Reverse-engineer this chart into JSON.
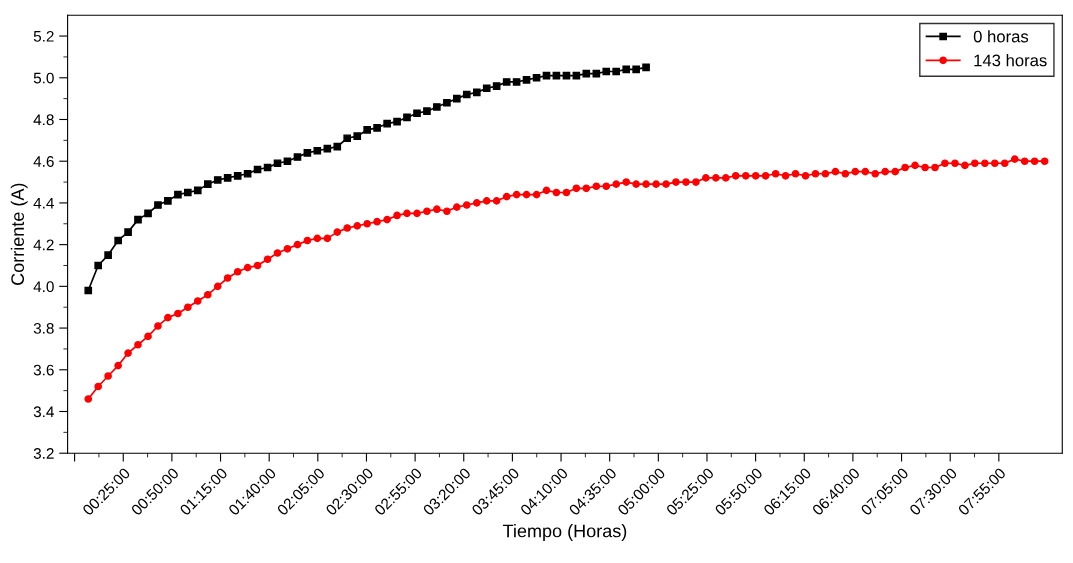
{
  "chart_data": {
    "type": "line",
    "xlabel": "Tiempo (Horas)",
    "ylabel": "Corriente (A)",
    "xlim": [
      -0.06,
      8.46
    ],
    "ylim": [
      3.2,
      5.3
    ],
    "xticks": [
      {
        "value": 0,
        "label": null
      },
      {
        "value": 0.4167,
        "label": "00:25:00"
      },
      {
        "value": 0.8333,
        "label": "00:50:00"
      },
      {
        "value": 1.25,
        "label": "01:15:00"
      },
      {
        "value": 1.6667,
        "label": "01:40:00"
      },
      {
        "value": 2.0833,
        "label": "02:05:00"
      },
      {
        "value": 2.5,
        "label": "02:30:00"
      },
      {
        "value": 2.9167,
        "label": "02:55:00"
      },
      {
        "value": 3.3333,
        "label": "03:20:00"
      },
      {
        "value": 3.75,
        "label": "03:45:00"
      },
      {
        "value": 4.1667,
        "label": "04:10:00"
      },
      {
        "value": 4.5833,
        "label": "04:35:00"
      },
      {
        "value": 5.0,
        "label": "05:00:00"
      },
      {
        "value": 5.4167,
        "label": "05:25:00"
      },
      {
        "value": 5.8333,
        "label": "05:50:00"
      },
      {
        "value": 6.25,
        "label": "06:15:00"
      },
      {
        "value": 6.6667,
        "label": "06:40:00"
      },
      {
        "value": 7.0833,
        "label": "07:05:00"
      },
      {
        "value": 7.5,
        "label": "07:30:00"
      },
      {
        "value": 7.9167,
        "label": "07:55:00"
      }
    ],
    "yticks": [
      3.2,
      3.4,
      3.6,
      3.8,
      {
        "value": 4,
        "label": "4.0"
      },
      4.2,
      4.4,
      4.6,
      4.8,
      {
        "value": 5,
        "label": "5.0"
      },
      5.2
    ],
    "grid": false,
    "legend": "top right",
    "series": [
      {
        "name": "0 horas",
        "color": "#000000",
        "marker": "square",
        "x": [
          0.117,
          0.202,
          0.287,
          0.373,
          0.458,
          0.543,
          0.629,
          0.714,
          0.799,
          0.885,
          0.97,
          1.055,
          1.141,
          1.226,
          1.311,
          1.397,
          1.482,
          1.567,
          1.653,
          1.738,
          1.823,
          1.909,
          1.994,
          2.079,
          2.165,
          2.25,
          2.335,
          2.421,
          2.506,
          2.591,
          2.677,
          2.762,
          2.847,
          2.933,
          3.018,
          3.103,
          3.189,
          3.274,
          3.359,
          3.445,
          3.53,
          3.615,
          3.701,
          3.786,
          3.871,
          3.957,
          4.042,
          4.127,
          4.213,
          4.298,
          4.383,
          4.469,
          4.554,
          4.639,
          4.725,
          4.81,
          4.895
        ],
        "values": [
          3.98,
          4.1,
          4.15,
          4.22,
          4.26,
          4.32,
          4.35,
          4.39,
          4.41,
          4.44,
          4.45,
          4.46,
          4.49,
          4.51,
          4.52,
          4.53,
          4.54,
          4.56,
          4.57,
          4.59,
          4.6,
          4.62,
          4.64,
          4.65,
          4.66,
          4.67,
          4.71,
          4.72,
          4.75,
          4.76,
          4.78,
          4.79,
          4.81,
          4.83,
          4.84,
          4.86,
          4.88,
          4.9,
          4.92,
          4.93,
          4.95,
          4.96,
          4.98,
          4.98,
          4.99,
          5.0,
          5.01,
          5.01,
          5.01,
          5.01,
          5.02,
          5.02,
          5.03,
          5.03,
          5.04,
          5.04,
          5.05
        ]
      },
      {
        "name": "143 horas",
        "color": "#ff0000",
        "marker": "circle",
        "x": [
          0.117,
          0.202,
          0.287,
          0.373,
          0.458,
          0.543,
          0.629,
          0.714,
          0.799,
          0.885,
          0.97,
          1.055,
          1.141,
          1.226,
          1.311,
          1.397,
          1.482,
          1.567,
          1.653,
          1.738,
          1.823,
          1.909,
          1.994,
          2.079,
          2.165,
          2.25,
          2.335,
          2.421,
          2.506,
          2.591,
          2.677,
          2.762,
          2.847,
          2.933,
          3.018,
          3.103,
          3.189,
          3.274,
          3.359,
          3.445,
          3.53,
          3.615,
          3.701,
          3.786,
          3.871,
          3.957,
          4.042,
          4.127,
          4.213,
          4.298,
          4.383,
          4.469,
          4.554,
          4.639,
          4.725,
          4.81,
          4.895,
          4.981,
          5.066,
          5.151,
          5.237,
          5.322,
          5.407,
          5.493,
          5.578,
          5.663,
          5.749,
          5.834,
          5.919,
          6.005,
          6.09,
          6.175,
          6.261,
          6.346,
          6.431,
          6.517,
          6.602,
          6.687,
          6.773,
          6.858,
          6.943,
          7.029,
          7.114,
          7.199,
          7.285,
          7.37,
          7.455,
          7.541,
          7.626,
          7.711,
          7.797,
          7.882,
          7.967,
          8.053,
          8.138,
          8.223,
          8.309
        ],
        "values": [
          3.46,
          3.52,
          3.57,
          3.62,
          3.68,
          3.72,
          3.76,
          3.81,
          3.85,
          3.87,
          3.9,
          3.93,
          3.96,
          4.0,
          4.04,
          4.07,
          4.09,
          4.1,
          4.13,
          4.16,
          4.18,
          4.2,
          4.22,
          4.23,
          4.23,
          4.26,
          4.28,
          4.29,
          4.3,
          4.31,
          4.32,
          4.34,
          4.35,
          4.35,
          4.36,
          4.37,
          4.36,
          4.38,
          4.39,
          4.4,
          4.41,
          4.41,
          4.43,
          4.44,
          4.44,
          4.44,
          4.46,
          4.45,
          4.45,
          4.47,
          4.47,
          4.48,
          4.48,
          4.49,
          4.5,
          4.49,
          4.49,
          4.49,
          4.49,
          4.5,
          4.5,
          4.5,
          4.52,
          4.52,
          4.52,
          4.53,
          4.53,
          4.53,
          4.53,
          4.54,
          4.53,
          4.54,
          4.53,
          4.54,
          4.54,
          4.55,
          4.54,
          4.55,
          4.55,
          4.54,
          4.55,
          4.55,
          4.57,
          4.58,
          4.57,
          4.57,
          4.59,
          4.59,
          4.58,
          4.59,
          4.59,
          4.59,
          4.59,
          4.61,
          4.6,
          4.6,
          4.6
        ]
      }
    ]
  }
}
